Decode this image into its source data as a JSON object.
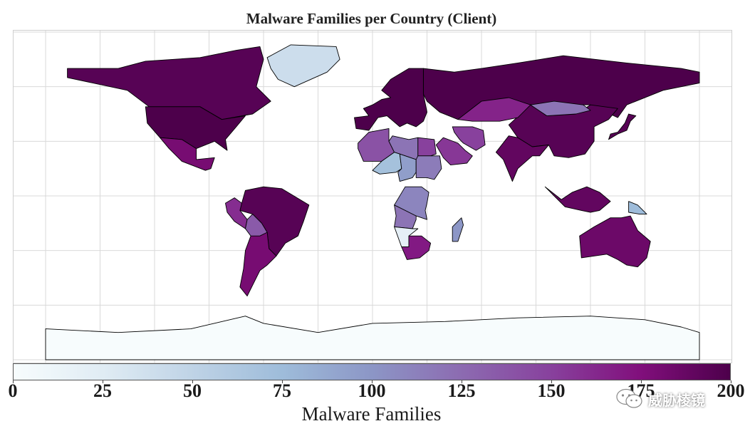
{
  "title": "Malware Families per Country (Client)",
  "colorbar": {
    "label": "Malware Families",
    "min": 0,
    "max": 200,
    "ticks": [
      "0",
      "25",
      "50",
      "75",
      "100",
      "125",
      "150",
      "175",
      "200"
    ],
    "colorscale": [
      "#f7fcfd",
      "#e0ecf4",
      "#bfd3e6",
      "#9ebcda",
      "#8c96c6",
      "#8c6bb1",
      "#88419d",
      "#810f7c",
      "#4d004b"
    ]
  },
  "watermark": {
    "text": "威胁棱镜",
    "icon": "wechat-icon"
  },
  "map": {
    "projection": "equirectangular",
    "grid": true,
    "border_color": "#000000",
    "background": "#ffffff"
  },
  "chart_data": {
    "type": "choropleth",
    "value_label": "Malware Families",
    "approximate_values": [
      {
        "region": "Canada",
        "value": 195
      },
      {
        "region": "United States",
        "value": 200
      },
      {
        "region": "Mexico",
        "value": 180
      },
      {
        "region": "Greenland",
        "value": 40
      },
      {
        "region": "Brazil",
        "value": 195
      },
      {
        "region": "Argentina",
        "value": 180
      },
      {
        "region": "Peru",
        "value": 160
      },
      {
        "region": "Bolivia",
        "value": 135
      },
      {
        "region": "Russia",
        "value": 200
      },
      {
        "region": "China",
        "value": 195
      },
      {
        "region": "Mongolia",
        "value": 120
      },
      {
        "region": "Kazakhstan",
        "value": 165
      },
      {
        "region": "India",
        "value": 190
      },
      {
        "region": "Australia",
        "value": 185
      },
      {
        "region": "Indonesia",
        "value": 190
      },
      {
        "region": "Papua New Guinea",
        "value": 75
      },
      {
        "region": "Japan",
        "value": 195
      },
      {
        "region": "Saudi Arabia",
        "value": 155
      },
      {
        "region": "Iran",
        "value": 150
      },
      {
        "region": "Western Europe",
        "value": 200
      },
      {
        "region": "Algeria",
        "value": 140
      },
      {
        "region": "Libya",
        "value": 120
      },
      {
        "region": "Egypt",
        "value": 150
      },
      {
        "region": "Niger",
        "value": 70
      },
      {
        "region": "Chad",
        "value": 95
      },
      {
        "region": "Sudan",
        "value": 115
      },
      {
        "region": "DR Congo",
        "value": 110
      },
      {
        "region": "Angola",
        "value": 120
      },
      {
        "region": "Namibia",
        "value": 20
      },
      {
        "region": "South Africa",
        "value": 170
      },
      {
        "region": "Madagascar",
        "value": 100
      },
      {
        "region": "Antarctica",
        "value": 0
      }
    ]
  }
}
